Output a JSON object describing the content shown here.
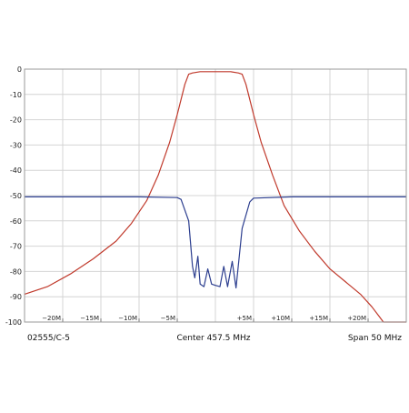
{
  "chart_data": {
    "type": "line",
    "title": "",
    "xlabel": "",
    "ylabel": "",
    "xlim": [
      -25,
      25
    ],
    "ylim": [
      -100,
      0
    ],
    "grid": true,
    "y_ticks": [
      0,
      -10,
      -20,
      -30,
      -40,
      -50,
      -60,
      -70,
      -80,
      -90,
      -100
    ],
    "x_ticks": [
      {
        "value": -20,
        "label": "−20M"
      },
      {
        "value": -15,
        "label": "−15M"
      },
      {
        "value": -10,
        "label": "−10M"
      },
      {
        "value": -5,
        "label": "−5M"
      },
      {
        "value": 5,
        "label": "+5M"
      },
      {
        "value": 10,
        "label": "+10M"
      },
      {
        "value": 15,
        "label": "+15M"
      },
      {
        "value": 20,
        "label": "+20M"
      }
    ],
    "series": [
      {
        "color": "#c0392b",
        "x": [
          -25,
          -22,
          -19,
          -16,
          -13,
          -11,
          -9,
          -7.5,
          -6,
          -5,
          -4,
          -3.5,
          -3,
          -2,
          0,
          2,
          3,
          3.5,
          4,
          5,
          6,
          7.5,
          9,
          11,
          13,
          15,
          17,
          19,
          20.5,
          21.5,
          22,
          23,
          25
        ],
        "y": [
          -89,
          -86,
          -81,
          -75,
          -68,
          -61,
          -52,
          -42,
          -29,
          -18,
          -6,
          -2,
          -1.5,
          -1,
          -1,
          -1,
          -1.5,
          -2,
          -6,
          -18,
          -29,
          -42,
          -54,
          -64,
          -72,
          -79,
          -84,
          -89,
          -94,
          -98,
          -100,
          -100,
          -100
        ]
      },
      {
        "color": "#2c3e8f",
        "x": [
          -25,
          -10,
          -5,
          -4.5,
          -3.5,
          -3,
          -2.7,
          -2.3,
          -2,
          -1.5,
          -1,
          -0.5,
          0,
          0.6,
          1.1,
          1.6,
          2.2,
          2.7,
          3.5,
          4.5,
          5,
          10,
          25
        ],
        "y": [
          -50.5,
          -50.5,
          -50.8,
          -51.5,
          -60,
          -78,
          -82.5,
          -74,
          -85,
          -86,
          -79,
          -85,
          -85.5,
          -86,
          -78,
          -86,
          -76,
          -86.5,
          -63,
          -52.5,
          -51,
          -50.5,
          -50.5
        ]
      }
    ],
    "footer": {
      "left": "02555/C-5",
      "center": "Center 457.5 MHz",
      "right": "Span 50 MHz"
    }
  }
}
